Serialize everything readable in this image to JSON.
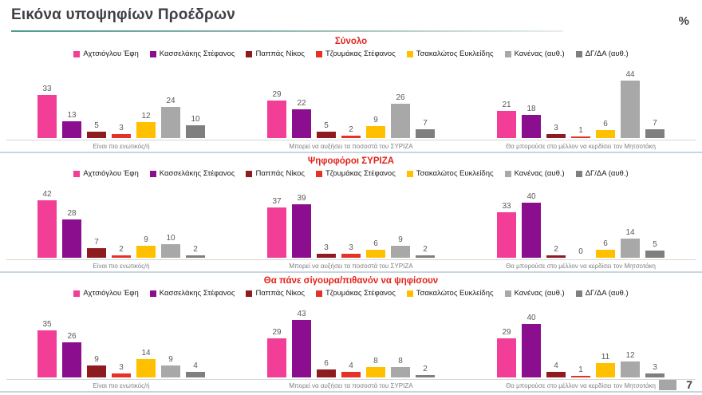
{
  "title": "Εικόνα υποψηφίων Προέδρων",
  "unit_label": "%",
  "page_number": "7",
  "colors": {
    "achtsioglou": "#F23E96",
    "kasselakis": "#8B0E8E",
    "pappas": "#8E1B1F",
    "tzoumakas": "#E53228",
    "tsakalotos": "#FFC000",
    "kanenas": "#A8A8A8",
    "dgda": "#7F7F7F",
    "section_title": "#E2231A",
    "separator": "#C6D5E0"
  },
  "chart_data": [
    {
      "type": "bar",
      "section_title": "Σύνολο",
      "legend_position": "top",
      "grid": false,
      "ylim": [
        0,
        45
      ],
      "categories": [
        "Είναι πιο ενωτικός/ή",
        "Μπορεί να αυξήσει τα ποσοστά του ΣΥΡΙΖΑ",
        "Θα μπορούσε στο μέλλον να κερδίσει τον Μητσοτάκη"
      ],
      "series": [
        {
          "name": "Αχτσιόγλου Έφη",
          "color": "#F23E96",
          "values": [
            33,
            29,
            21
          ]
        },
        {
          "name": "Κασσελάκης Στέφανος",
          "color": "#8B0E8E",
          "values": [
            13,
            22,
            18
          ]
        },
        {
          "name": "Παππάς Νίκος",
          "color": "#8E1B1F",
          "values": [
            5,
            5,
            3
          ]
        },
        {
          "name": "Τζουμάκας Στέφανος",
          "color": "#E53228",
          "values": [
            3,
            2,
            1
          ]
        },
        {
          "name": "Τσακαλώτος Ευκλείδης",
          "color": "#FFC000",
          "values": [
            12,
            9,
            6
          ]
        },
        {
          "name": "Κανένας (αυθ.)",
          "color": "#A8A8A8",
          "values": [
            24,
            26,
            44
          ]
        },
        {
          "name": "ΔΓ/ΔΑ (αυθ.)",
          "color": "#7F7F7F",
          "values": [
            10,
            7,
            7
          ]
        }
      ]
    },
    {
      "type": "bar",
      "section_title": "Ψηφοφόροι ΣΥΡΙΖΑ",
      "legend_position": "top",
      "grid": false,
      "ylim": [
        0,
        45
      ],
      "categories": [
        "Είναι πιο ενωτικός/ή",
        "Μπορεί να αυξήσει τα ποσοστά του ΣΥΡΙΖΑ",
        "Θα μπορούσε στο μέλλον να κερδίσει τον Μητσοτάκη"
      ],
      "series": [
        {
          "name": "Αχτσιόγλου Έφη",
          "color": "#F23E96",
          "values": [
            42,
            37,
            33
          ]
        },
        {
          "name": "Κασσελάκης Στέφανος",
          "color": "#8B0E8E",
          "values": [
            28,
            39,
            40
          ]
        },
        {
          "name": "Παππάς Νίκος",
          "color": "#8E1B1F",
          "values": [
            7,
            3,
            2
          ]
        },
        {
          "name": "Τζουμάκας Στέφανος",
          "color": "#E53228",
          "values": [
            2,
            3,
            0
          ]
        },
        {
          "name": "Τσακαλώτος Ευκλείδης",
          "color": "#FFC000",
          "values": [
            9,
            6,
            6
          ]
        },
        {
          "name": "Κανένας (αυθ.)",
          "color": "#A8A8A8",
          "values": [
            10,
            9,
            14
          ]
        },
        {
          "name": "ΔΓ/ΔΑ (αυθ.)",
          "color": "#7F7F7F",
          "values": [
            2,
            2,
            5
          ]
        }
      ]
    },
    {
      "type": "bar",
      "section_title": "Θα πάνε σίγουρα/πιθανόν να ψηφίσουν",
      "legend_position": "top",
      "grid": false,
      "ylim": [
        0,
        45
      ],
      "categories": [
        "Είναι πιο ενωτικός/ή",
        "Μπορεί να αυξήσει τα ποσοστά του ΣΥΡΙΖΑ",
        "Θα μπορούσε στο μέλλον να κερδίσει τον Μητσοτάκη"
      ],
      "series": [
        {
          "name": "Αχτσιόγλου Έφη",
          "color": "#F23E96",
          "values": [
            35,
            29,
            29
          ]
        },
        {
          "name": "Κασσελάκης Στέφανος",
          "color": "#8B0E8E",
          "values": [
            26,
            43,
            40
          ]
        },
        {
          "name": "Παππάς Νίκος",
          "color": "#8E1B1F",
          "values": [
            9,
            6,
            4
          ]
        },
        {
          "name": "Τζουμάκας Στέφανος",
          "color": "#E53228",
          "values": [
            3,
            4,
            1
          ]
        },
        {
          "name": "Τσακαλώτος Ευκλείδης",
          "color": "#FFC000",
          "values": [
            14,
            8,
            11
          ]
        },
        {
          "name": "Κανένας (αυθ.)",
          "color": "#A8A8A8",
          "values": [
            9,
            8,
            12
          ]
        },
        {
          "name": "ΔΓ/ΔΑ (αυθ.)",
          "color": "#7F7F7F",
          "values": [
            4,
            2,
            3
          ]
        }
      ]
    }
  ]
}
